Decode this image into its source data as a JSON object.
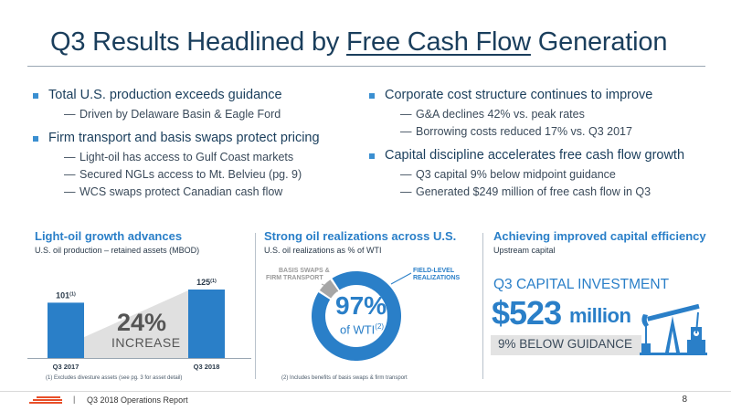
{
  "header": {
    "title_pre": "Q3 Results Headlined by ",
    "title_highlight": "Free Cash Flow",
    "title_post": " Generation"
  },
  "left_bullets": [
    {
      "text": "Total U.S. production exceeds guidance",
      "subs": [
        "Driven by Delaware Basin & Eagle Ford"
      ]
    },
    {
      "text": "Firm transport and basis swaps protect pricing",
      "subs": [
        "Light-oil has access to Gulf Coast markets",
        "Secured NGLs access to Mt. Belvieu (pg. 9)",
        "WCS swaps protect Canadian cash flow"
      ]
    }
  ],
  "right_bullets": [
    {
      "text": "Corporate cost structure continues to improve",
      "subs": [
        "G&A declines 42% vs. peak rates",
        "Borrowing costs reduced 17% vs. Q3 2017"
      ]
    },
    {
      "text": "Capital discipline accelerates free cash flow growth",
      "subs": [
        "Q3 capital 9% below midpoint guidance",
        "Generated $249 million of free cash flow in Q3"
      ]
    }
  ],
  "dash": "—",
  "panels": {
    "growth": {
      "title": "Light-oil growth advances",
      "subtitle": "U.S. oil production – retained assets (MBOD)",
      "increase_pct": "24%",
      "increase_word": "INCREASE",
      "footnote": "(1) Excludes divesture assets (see pg. 3 for asset detail)"
    },
    "realizations": {
      "title": "Strong oil realizations across U.S.",
      "subtitle": "U.S. oil realizations as % of WTI",
      "center_value": "97%",
      "center_label": "of WTI",
      "center_sup": "(2)",
      "label_basis_1": "BASIS SWAPS &",
      "label_basis_2": "FIRM TRANSPORT",
      "label_field_1": "FIELD-LEVEL",
      "label_field_2": "REALIZATIONS",
      "footnote": "(2) Includes benefits of basis swaps & firm transport"
    },
    "capex": {
      "title": "Achieving improved capital efficiency",
      "subtitle": "Upstream capital",
      "label": "Q3 CAPITAL INVESTMENT",
      "amount": "$523",
      "unit": "million",
      "below": "9% BELOW GUIDANCE"
    }
  },
  "chart_data": [
    {
      "type": "bar",
      "categories": [
        "Q3 2017",
        "Q3 2018"
      ],
      "values": [
        101,
        125
      ],
      "data_labels": [
        "101",
        "125"
      ],
      "data_label_sup": "(1)",
      "title": "Light-oil growth advances",
      "ylabel": "U.S. oil production – retained assets (MBOD)"
    },
    {
      "type": "pie",
      "categories": [
        "FIELD-LEVEL REALIZATIONS",
        "BASIS SWAPS & FIRM TRANSPORT"
      ],
      "values": [
        91,
        6
      ],
      "total_label": "97%",
      "title": "Strong oil realizations across U.S."
    }
  ],
  "footer": {
    "separator": "|",
    "text": "Q3 2018 Operations Report",
    "page": "8"
  },
  "colors": {
    "accent": "#2a7fc8",
    "bullet": "#3a8fd1",
    "navy": "#1a3e5c",
    "bar": "#2a7fc8",
    "grey_segment": "#a6a6a6",
    "logo": "#e8502a"
  }
}
